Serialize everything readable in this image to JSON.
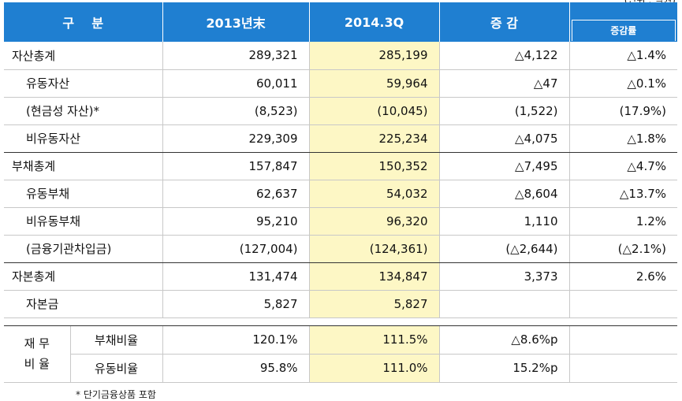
{
  "unit_note": "(단위 : 억원)",
  "footnote": "* 단기금융상품 포함",
  "headers": {
    "category": "구    분",
    "col2013": "2013년末",
    "col2014": "2014.3Q",
    "change": "증 감",
    "change_rate": "증감률"
  },
  "rows": [
    {
      "label": "자산총계",
      "v2013": "289,321",
      "v2014": "285,199",
      "change": "△4,122",
      "rate": "△1.4%"
    },
    {
      "label": "유동자산",
      "v2013": "60,011",
      "v2014": "59,964",
      "change": "△47",
      "rate": "△0.1%"
    },
    {
      "label": "(현금성 자산)*",
      "v2013": "(8,523)",
      "v2014": "(10,045)",
      "change": "(1,522)",
      "rate": "(17.9%)"
    },
    {
      "label": "비유동자산",
      "v2013": "229,309",
      "v2014": "225,234",
      "change": "△4,075",
      "rate": "△1.8%"
    },
    {
      "label": "부채총계",
      "v2013": "157,847",
      "v2014": "150,352",
      "change": "△7,495",
      "rate": "△4.7%"
    },
    {
      "label": "유동부채",
      "v2013": "62,637",
      "v2014": "54,032",
      "change": "△8,604",
      "rate": "△13.7%"
    },
    {
      "label": "비유동부채",
      "v2013": "95,210",
      "v2014": "96,320",
      "change": "1,110",
      "rate": "1.2%"
    },
    {
      "label": "(금융기관차입금)",
      "v2013": "(127,004)",
      "v2014": "(124,361)",
      "change": "(△2,644)",
      "rate": "(△2.1%)"
    },
    {
      "label": "자본총계",
      "v2013": "131,474",
      "v2014": "134,847",
      "change": "3,373",
      "rate": "2.6%"
    },
    {
      "label": "자본금",
      "v2013": "5,827",
      "v2014": "5,827",
      "change": "",
      "rate": ""
    }
  ],
  "ratio_group_label_1": "재 무",
  "ratio_group_label_2": "비 율",
  "ratios": [
    {
      "label": "부채비율",
      "v2013": "120.1%",
      "v2014": "111.5%",
      "change": "△8.6%p",
      "rate": ""
    },
    {
      "label": "유동비율",
      "v2013": "95.8%",
      "v2014": "111.0%",
      "change": "15.2%p",
      "rate": ""
    }
  ]
}
